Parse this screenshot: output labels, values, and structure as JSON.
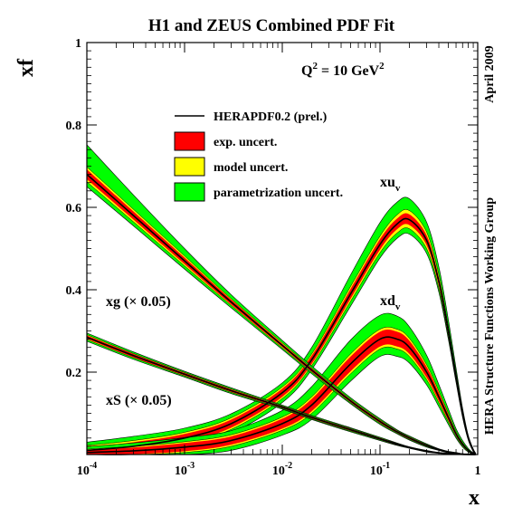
{
  "chart_data": {
    "type": "line",
    "title": "H1 and ZEUS Combined PDF Fit",
    "xlabel": "x",
    "ylabel": "xf",
    "xscale": "log",
    "xlim": [
      0.0001,
      1
    ],
    "ylim": [
      0,
      1
    ],
    "grid": false,
    "legend_position": "top-center",
    "x_ticks": [
      {
        "base": "10",
        "exp": "-4"
      },
      {
        "base": "10",
        "exp": "-3"
      },
      {
        "base": "10",
        "exp": "-2"
      },
      {
        "base": "10",
        "exp": "-1"
      },
      {
        "base": "1",
        "exp": ""
      }
    ],
    "y_ticks": [
      "0.2",
      "0.4",
      "0.6",
      "0.8",
      "1"
    ],
    "q2_label": {
      "base": "Q",
      "exp": "2",
      "rest": " = 10 GeV",
      "rest_exp": "2"
    },
    "side_labels": {
      "date": "April 2009",
      "group": "HERA Structure Functions Working Group"
    },
    "legend": [
      {
        "label": "HERAPDF0.2 (prel.)",
        "kind": "line",
        "color": "#000000"
      },
      {
        "label": "exp. uncert.",
        "kind": "box",
        "color": "#ff0000"
      },
      {
        "label": "model uncert.",
        "kind": "box",
        "color": "#ffff00"
      },
      {
        "label": "parametrization uncert.",
        "kind": "box",
        "color": "#00ff00"
      }
    ],
    "colors": {
      "central": "#000000",
      "exp": "#ff0000",
      "model": "#ffff00",
      "param": "#00ff00"
    },
    "series": [
      {
        "label_text": "xu",
        "label_sub": "v",
        "x": [
          0.0001,
          0.0003,
          0.001,
          0.003,
          0.01,
          0.02,
          0.05,
          0.1,
          0.15,
          0.2,
          0.3,
          0.4,
          0.5,
          0.6,
          0.7,
          0.8,
          0.9,
          0.95
        ],
        "central": [
          0.01,
          0.02,
          0.04,
          0.075,
          0.15,
          0.23,
          0.39,
          0.51,
          0.56,
          0.57,
          0.52,
          0.42,
          0.3,
          0.19,
          0.1,
          0.04,
          0.01,
          0.002
        ],
        "exp": [
          0.008,
          0.01,
          0.01,
          0.01,
          0.01,
          0.01,
          0.012,
          0.013,
          0.013,
          0.013,
          0.012,
          0.01,
          0.008,
          0.006,
          0.004,
          0.002,
          0.001,
          0.001
        ],
        "model": [
          0.012,
          0.014,
          0.014,
          0.014,
          0.014,
          0.014,
          0.018,
          0.02,
          0.022,
          0.022,
          0.02,
          0.016,
          0.012,
          0.009,
          0.006,
          0.003,
          0.002,
          0.001
        ],
        "param_lo": [
          0.012,
          0.014,
          0.014,
          0.014,
          0.014,
          0.014,
          0.018,
          0.02,
          0.022,
          0.022,
          0.02,
          0.016,
          0.012,
          0.009,
          0.006,
          0.003,
          0.002,
          0.001
        ],
        "param_hi": [
          0.012,
          0.014,
          0.014,
          0.014,
          0.014,
          0.02,
          0.034,
          0.04,
          0.04,
          0.038,
          0.032,
          0.026,
          0.02,
          0.014,
          0.009,
          0.005,
          0.003,
          0.001
        ]
      },
      {
        "label_text": "xd",
        "label_sub": "v",
        "x": [
          0.0001,
          0.0003,
          0.001,
          0.003,
          0.01,
          0.02,
          0.05,
          0.1,
          0.15,
          0.2,
          0.3,
          0.4,
          0.5,
          0.6,
          0.7,
          0.8,
          0.9,
          0.95
        ],
        "central": [
          0.005,
          0.009,
          0.018,
          0.034,
          0.075,
          0.12,
          0.22,
          0.28,
          0.28,
          0.26,
          0.2,
          0.14,
          0.09,
          0.05,
          0.025,
          0.01,
          0.002,
          0.0005
        ],
        "exp": [
          0.006,
          0.008,
          0.01,
          0.01,
          0.012,
          0.015,
          0.018,
          0.018,
          0.018,
          0.016,
          0.013,
          0.01,
          0.007,
          0.004,
          0.003,
          0.002,
          0.001,
          0.0005
        ],
        "model": [
          0.008,
          0.011,
          0.013,
          0.014,
          0.016,
          0.02,
          0.024,
          0.024,
          0.024,
          0.022,
          0.018,
          0.014,
          0.01,
          0.006,
          0.004,
          0.002,
          0.001,
          0.0005
        ],
        "param_lo": [
          0.008,
          0.011,
          0.013,
          0.014,
          0.016,
          0.02,
          0.024,
          0.024,
          0.024,
          0.022,
          0.018,
          0.014,
          0.01,
          0.006,
          0.004,
          0.002,
          0.001,
          0.0005
        ],
        "param_hi": [
          0.008,
          0.011,
          0.013,
          0.014,
          0.02,
          0.03,
          0.04,
          0.04,
          0.038,
          0.034,
          0.028,
          0.02,
          0.014,
          0.009,
          0.006,
          0.003,
          0.001,
          0.0005
        ]
      },
      {
        "label_text": "xg (× 0.05)",
        "x": [
          0.0001,
          0.0003,
          0.001,
          0.003,
          0.01,
          0.02,
          0.05,
          0.1,
          0.15,
          0.2,
          0.3,
          0.4,
          0.5,
          0.6,
          0.7,
          0.8,
          0.9,
          0.95
        ],
        "central": [
          0.68,
          0.58,
          0.47,
          0.37,
          0.265,
          0.205,
          0.13,
          0.08,
          0.055,
          0.04,
          0.022,
          0.012,
          0.006,
          0.003,
          0.001,
          0.0005,
          0.0002,
          0.0001
        ],
        "exp": [
          0.012,
          0.01,
          0.008,
          0.006,
          0.004,
          0.004,
          0.003,
          0.003,
          0.002,
          0.002,
          0.002,
          0.001,
          0.001,
          0.001,
          0.0005,
          0.0002,
          0.0001,
          0.0001
        ],
        "model": [
          0.018,
          0.015,
          0.012,
          0.008,
          0.006,
          0.005,
          0.004,
          0.004,
          0.003,
          0.003,
          0.002,
          0.001,
          0.001,
          0.001,
          0.0005,
          0.0002,
          0.0001,
          0.0001
        ],
        "param_lo": [
          0.018,
          0.015,
          0.012,
          0.008,
          0.006,
          0.005,
          0.004,
          0.004,
          0.003,
          0.003,
          0.002,
          0.001,
          0.001,
          0.001,
          0.0005,
          0.0002,
          0.0001,
          0.0001
        ],
        "param_hi": [
          0.06,
          0.04,
          0.022,
          0.012,
          0.008,
          0.006,
          0.005,
          0.004,
          0.003,
          0.003,
          0.002,
          0.001,
          0.001,
          0.001,
          0.0005,
          0.0002,
          0.0001,
          0.0001
        ]
      },
      {
        "label_text": "xS (× 0.05)",
        "x": [
          0.0001,
          0.0003,
          0.001,
          0.003,
          0.01,
          0.02,
          0.05,
          0.1,
          0.15,
          0.2,
          0.3,
          0.4,
          0.5,
          0.6,
          0.7,
          0.8,
          0.9,
          0.95
        ],
        "central": [
          0.285,
          0.24,
          0.195,
          0.155,
          0.115,
          0.09,
          0.06,
          0.038,
          0.025,
          0.017,
          0.008,
          0.004,
          0.002,
          0.001,
          0.0005,
          0.0002,
          0.0001,
          0.0001
        ],
        "exp": [
          0.004,
          0.004,
          0.003,
          0.003,
          0.002,
          0.002,
          0.002,
          0.002,
          0.001,
          0.001,
          0.001,
          0.0005,
          0.0003,
          0.0002,
          0.0001,
          0.0001,
          0.0001,
          0.0001
        ],
        "model": [
          0.006,
          0.005,
          0.004,
          0.004,
          0.003,
          0.003,
          0.003,
          0.002,
          0.002,
          0.001,
          0.001,
          0.0005,
          0.0003,
          0.0002,
          0.0001,
          0.0001,
          0.0001,
          0.0001
        ],
        "param_lo": [
          0.006,
          0.005,
          0.004,
          0.004,
          0.003,
          0.003,
          0.003,
          0.002,
          0.002,
          0.001,
          0.001,
          0.0005,
          0.0003,
          0.0002,
          0.0001,
          0.0001,
          0.0001,
          0.0001
        ],
        "param_hi": [
          0.006,
          0.005,
          0.004,
          0.004,
          0.003,
          0.003,
          0.003,
          0.002,
          0.002,
          0.001,
          0.001,
          0.0005,
          0.0003,
          0.0002,
          0.0001,
          0.0001,
          0.0001,
          0.0001
        ]
      }
    ]
  }
}
